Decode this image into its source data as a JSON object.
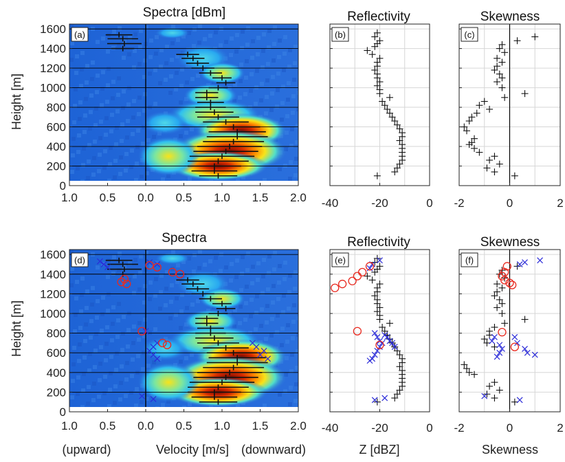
{
  "chart_data": [
    {
      "panel": "(a)",
      "type": "heatmap",
      "title": "Spectra [dBm]",
      "ylabel": "Height [m]",
      "x_tick_labels": [
        "1.0",
        "0.5",
        "0.0",
        "0.5",
        "1.0",
        "1.5",
        "2.0"
      ],
      "xlim": [
        -1.0,
        2.0
      ],
      "ylim": [
        0,
        1650
      ],
      "y_ticks": [
        0,
        200,
        400,
        600,
        800,
        1000,
        1200,
        1400,
        1600
      ],
      "colormap": "jet",
      "peak_markers": [
        {
          "height": 1540,
          "v": -0.35,
          "width": 0.35
        },
        {
          "height": 1500,
          "v": -0.3,
          "width": 0.4
        },
        {
          "height": 1450,
          "v": -0.28,
          "width": 0.45
        },
        {
          "height": 1400,
          "v": -0.3,
          "width": 0.3
        },
        {
          "height": 1340,
          "v": 0.55,
          "width": 0.3
        },
        {
          "height": 1300,
          "v": 0.62,
          "width": 0.3
        },
        {
          "height": 1250,
          "v": 0.68,
          "width": 0.3
        },
        {
          "height": 1200,
          "v": 0.75,
          "width": 0.3
        },
        {
          "height": 1150,
          "v": 0.85,
          "width": 0.3
        },
        {
          "height": 1100,
          "v": 1.0,
          "width": 0.25
        },
        {
          "height": 1050,
          "v": 1.05,
          "width": 0.25
        },
        {
          "height": 1000,
          "v": 0.95,
          "width": 0.25
        },
        {
          "height": 950,
          "v": 0.8,
          "width": 0.3
        },
        {
          "height": 900,
          "v": 0.8,
          "width": 0.3
        },
        {
          "height": 850,
          "v": 0.85,
          "width": 0.35
        },
        {
          "height": 800,
          "v": 0.85,
          "width": 0.4
        },
        {
          "height": 750,
          "v": 0.9,
          "width": 0.5
        },
        {
          "height": 700,
          "v": 0.95,
          "width": 0.55
        },
        {
          "height": 650,
          "v": 1.05,
          "width": 0.6
        },
        {
          "height": 600,
          "v": 1.15,
          "width": 0.7
        },
        {
          "height": 550,
          "v": 1.2,
          "width": 0.75
        },
        {
          "height": 500,
          "v": 1.2,
          "width": 0.8
        },
        {
          "height": 450,
          "v": 1.15,
          "width": 0.8
        },
        {
          "height": 400,
          "v": 1.1,
          "width": 0.85
        },
        {
          "height": 350,
          "v": 1.05,
          "width": 0.85
        },
        {
          "height": 300,
          "v": 1.0,
          "width": 0.85
        },
        {
          "height": 250,
          "v": 0.95,
          "width": 0.8
        },
        {
          "height": 200,
          "v": 0.9,
          "width": 0.7
        },
        {
          "height": 150,
          "v": 0.9,
          "width": 0.6
        },
        {
          "height": 100,
          "v": 0.95,
          "width": 0.5
        }
      ]
    },
    {
      "panel": "(b)",
      "type": "scatter",
      "title": "Reflectivity",
      "xlim": [
        -40,
        0
      ],
      "x_tick_labels": [
        "-40",
        "-20",
        "0"
      ],
      "marker": "+",
      "points": [
        [
          -21,
          1560
        ],
        [
          -22,
          1520
        ],
        [
          -20,
          1480
        ],
        [
          -21,
          1450
        ],
        [
          -22,
          1420
        ],
        [
          -25,
          1380
        ],
        [
          -23,
          1340
        ],
        [
          -20,
          1300
        ],
        [
          -21,
          1260
        ],
        [
          -21,
          1220
        ],
        [
          -22,
          1180
        ],
        [
          -21,
          1140
        ],
        [
          -21,
          1100
        ],
        [
          -20,
          1060
        ],
        [
          -21,
          1020
        ],
        [
          -20,
          980
        ],
        [
          -20,
          940
        ],
        [
          -16,
          900
        ],
        [
          -19,
          860
        ],
        [
          -18,
          820
        ],
        [
          -17,
          780
        ],
        [
          -16,
          740
        ],
        [
          -15,
          700
        ],
        [
          -14,
          660
        ],
        [
          -13,
          620
        ],
        [
          -12,
          580
        ],
        [
          -11,
          540
        ],
        [
          -11,
          500
        ],
        [
          -12,
          460
        ],
        [
          -11,
          420
        ],
        [
          -11,
          380
        ],
        [
          -11,
          340
        ],
        [
          -11,
          300
        ],
        [
          -11,
          260
        ],
        [
          -12,
          220
        ],
        [
          -13,
          180
        ],
        [
          -14,
          140
        ],
        [
          -21,
          100
        ]
      ]
    },
    {
      "panel": "(c)",
      "type": "scatter",
      "title": "Skewness",
      "xlim": [
        -2,
        2
      ],
      "x_tick_labels": [
        "-2",
        "0",
        "2"
      ],
      "marker": "+",
      "points": [
        [
          1.0,
          1520
        ],
        [
          0.3,
          1480
        ],
        [
          -0.3,
          1440
        ],
        [
          -0.4,
          1400
        ],
        [
          -0.2,
          1360
        ],
        [
          -0.5,
          1300
        ],
        [
          -0.3,
          1260
        ],
        [
          -0.5,
          1220
        ],
        [
          -0.6,
          1180
        ],
        [
          -0.4,
          1140
        ],
        [
          -0.3,
          1100
        ],
        [
          -0.5,
          1060
        ],
        [
          -0.3,
          1000
        ],
        [
          0.6,
          940
        ],
        [
          -0.2,
          900
        ],
        [
          -1.0,
          860
        ],
        [
          -1.2,
          820
        ],
        [
          -0.8,
          780
        ],
        [
          -1.3,
          740
        ],
        [
          -1.5,
          700
        ],
        [
          -1.6,
          660
        ],
        [
          -1.8,
          600
        ],
        [
          -1.7,
          560
        ],
        [
          -1.4,
          480
        ],
        [
          -1.5,
          440
        ],
        [
          -1.6,
          420
        ],
        [
          -1.4,
          380
        ],
        [
          -1.2,
          340
        ],
        [
          -0.6,
          300
        ],
        [
          -0.8,
          260
        ],
        [
          -0.4,
          220
        ],
        [
          -0.9,
          180
        ],
        [
          -0.6,
          140
        ],
        [
          0.2,
          100
        ]
      ]
    },
    {
      "panel": "(d)",
      "type": "heatmap",
      "title": "Spectra",
      "ylabel": "Height [m]",
      "xlabel_left": "(upward)",
      "xlabel": "Velocity [m/s]",
      "xlabel_right": "(downward)",
      "xlim": [
        -1.0,
        2.0
      ],
      "ylim": [
        0,
        1650
      ],
      "x_tick_labels": [
        "1.0",
        "0.5",
        "0.0",
        "0.5",
        "1.0",
        "1.5",
        "2.0"
      ],
      "colormap": "jet",
      "red_circles": [
        [
          0.05,
          1490
        ],
        [
          0.15,
          1470
        ],
        [
          0.35,
          1420
        ],
        [
          0.45,
          1400
        ],
        [
          -0.28,
          1350
        ],
        [
          -0.32,
          1320
        ],
        [
          -0.25,
          1300
        ],
        [
          -0.05,
          820
        ],
        [
          0.22,
          700
        ],
        [
          0.28,
          680
        ]
      ],
      "blue_crosses": [
        [
          -0.6,
          1530
        ],
        [
          -0.55,
          1500
        ],
        [
          -0.5,
          1470
        ],
        [
          0.05,
          1520
        ],
        [
          0.15,
          1500
        ],
        [
          0.0,
          820
        ],
        [
          0.15,
          700
        ],
        [
          0.1,
          660
        ],
        [
          0.05,
          620
        ],
        [
          0.1,
          580
        ],
        [
          0.15,
          540
        ],
        [
          1.4,
          700
        ],
        [
          1.45,
          660
        ],
        [
          1.55,
          620
        ],
        [
          1.5,
          580
        ],
        [
          1.6,
          540
        ],
        [
          -0.05,
          160
        ],
        [
          0.1,
          130
        ]
      ]
    },
    {
      "panel": "(e)",
      "type": "scatter",
      "title": "Reflectivity",
      "xlabel": "Z [dBZ]",
      "xlim": [
        -40,
        0
      ],
      "x_tick_labels": [
        "-40",
        "-20",
        "0"
      ],
      "black_plus": [
        [
          -21,
          1560
        ],
        [
          -22,
          1520
        ],
        [
          -20,
          1480
        ],
        [
          -21,
          1450
        ],
        [
          -22,
          1420
        ],
        [
          -25,
          1380
        ],
        [
          -23,
          1340
        ],
        [
          -20,
          1300
        ],
        [
          -21,
          1260
        ],
        [
          -21,
          1220
        ],
        [
          -22,
          1180
        ],
        [
          -21,
          1140
        ],
        [
          -21,
          1100
        ],
        [
          -20,
          1060
        ],
        [
          -21,
          1020
        ],
        [
          -20,
          980
        ],
        [
          -20,
          940
        ],
        [
          -16,
          900
        ],
        [
          -19,
          860
        ],
        [
          -18,
          820
        ],
        [
          -17,
          780
        ],
        [
          -16,
          740
        ],
        [
          -15,
          700
        ],
        [
          -14,
          660
        ],
        [
          -13,
          620
        ],
        [
          -12,
          580
        ],
        [
          -11,
          540
        ],
        [
          -11,
          500
        ],
        [
          -12,
          460
        ],
        [
          -11,
          420
        ],
        [
          -11,
          380
        ],
        [
          -11,
          340
        ],
        [
          -11,
          300
        ],
        [
          -11,
          260
        ],
        [
          -12,
          220
        ],
        [
          -13,
          180
        ],
        [
          -14,
          140
        ],
        [
          -21,
          100
        ]
      ],
      "red_circles": [
        [
          -24,
          1480
        ],
        [
          -27,
          1420
        ],
        [
          -29,
          1380
        ],
        [
          -31,
          1330
        ],
        [
          -35,
          1300
        ],
        [
          -38,
          1260
        ],
        [
          -29,
          820
        ],
        [
          -20,
          680
        ]
      ],
      "blue_crosses": [
        [
          -20,
          1540
        ],
        [
          -23,
          1500
        ],
        [
          -24,
          1460
        ],
        [
          -22,
          800
        ],
        [
          -21,
          760
        ],
        [
          -20,
          720
        ],
        [
          -19,
          700
        ],
        [
          -20,
          660
        ],
        [
          -21,
          620
        ],
        [
          -22,
          580
        ],
        [
          -23,
          540
        ],
        [
          -24,
          520
        ],
        [
          -18,
          780
        ],
        [
          -17,
          760
        ],
        [
          -16,
          720
        ],
        [
          -15,
          700
        ],
        [
          -14,
          660
        ],
        [
          -22,
          120
        ],
        [
          -18,
          140
        ]
      ]
    },
    {
      "panel": "(f)",
      "type": "scatter",
      "title": "Skewness",
      "xlabel": "Skewness",
      "xlim": [
        -2,
        2
      ],
      "x_tick_labels": [
        "-2",
        "0",
        "2"
      ],
      "black_plus": [
        [
          0.3,
          1480
        ],
        [
          -0.3,
          1440
        ],
        [
          -0.4,
          1400
        ],
        [
          -0.2,
          1360
        ],
        [
          -0.5,
          1300
        ],
        [
          -0.3,
          1260
        ],
        [
          -0.5,
          1220
        ],
        [
          -0.6,
          1180
        ],
        [
          -0.4,
          1140
        ],
        [
          -0.3,
          1100
        ],
        [
          -0.5,
          1060
        ],
        [
          -0.3,
          1000
        ],
        [
          0.6,
          940
        ],
        [
          -0.2,
          900
        ],
        [
          -0.6,
          860
        ],
        [
          -0.8,
          820
        ],
        [
          -0.8,
          780
        ],
        [
          -1.0,
          740
        ],
        [
          -0.9,
          700
        ],
        [
          -0.6,
          660
        ],
        [
          -1.8,
          480
        ],
        [
          -1.7,
          440
        ],
        [
          -1.6,
          400
        ],
        [
          -1.4,
          380
        ],
        [
          -0.6,
          300
        ],
        [
          -0.8,
          260
        ],
        [
          -0.4,
          220
        ],
        [
          -0.9,
          180
        ],
        [
          -0.6,
          140
        ],
        [
          0.2,
          100
        ]
      ],
      "red_circles": [
        [
          -0.1,
          1480
        ],
        [
          -0.2,
          1420
        ],
        [
          -0.3,
          1380
        ],
        [
          -0.2,
          1340
        ],
        [
          0.0,
          1310
        ],
        [
          0.1,
          1290
        ],
        [
          -0.3,
          810
        ],
        [
          0.2,
          660
        ]
      ],
      "blue_crosses": [
        [
          1.2,
          1540
        ],
        [
          0.6,
          1520
        ],
        [
          0.4,
          1500
        ],
        [
          -0.6,
          760
        ],
        [
          -0.7,
          720
        ],
        [
          -0.4,
          680
        ],
        [
          -0.3,
          640
        ],
        [
          -0.4,
          600
        ],
        [
          -0.5,
          560
        ],
        [
          0.2,
          760
        ],
        [
          0.3,
          700
        ],
        [
          0.6,
          640
        ],
        [
          0.7,
          600
        ],
        [
          1.0,
          580
        ],
        [
          -1.0,
          160
        ],
        [
          0.4,
          120
        ]
      ]
    }
  ],
  "colors": {
    "plus": "#111111",
    "circle": "#e8281e",
    "cross": "#2b2bd8",
    "gridline": "#000000"
  }
}
